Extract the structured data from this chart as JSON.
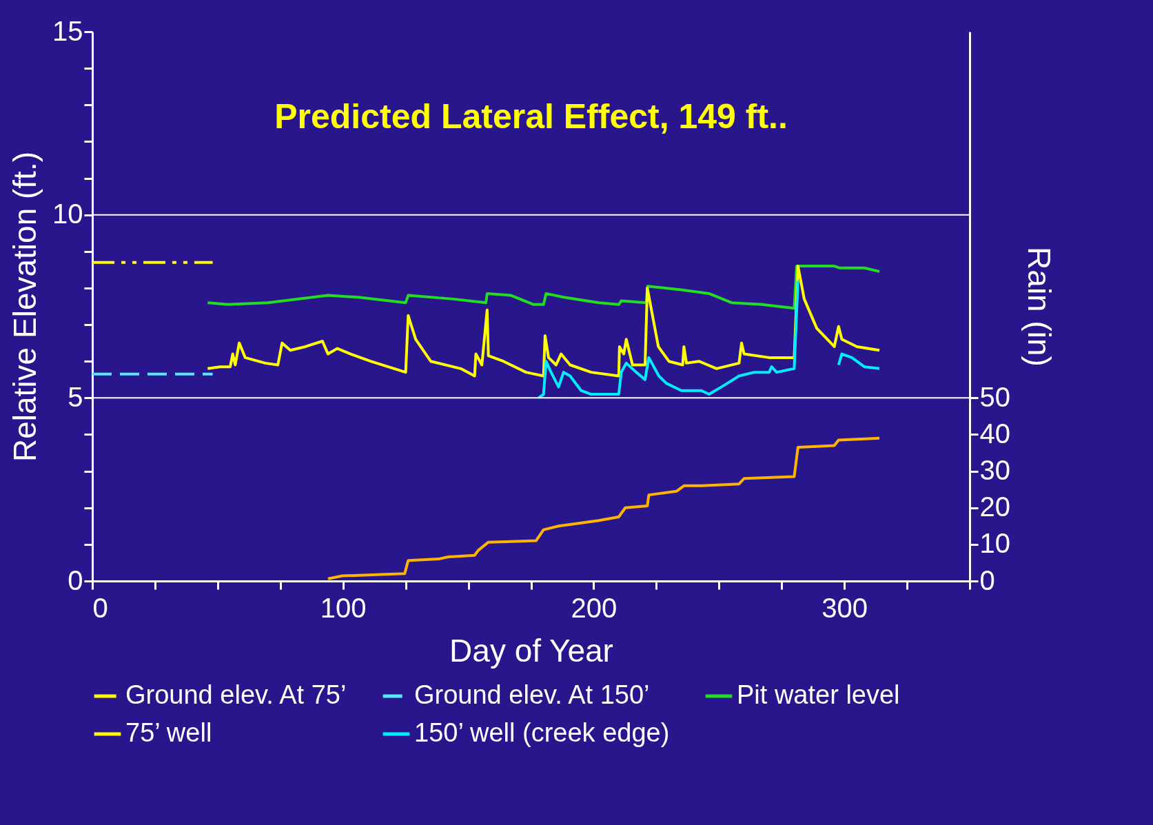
{
  "chart_data": {
    "type": "line",
    "title": "Predicted Lateral Effect, 149 ft..",
    "xlabel": "Day of Year",
    "ylabel": "Relative Elevation (ft.)",
    "y2label": "Rain (in)",
    "xlim": [
      0,
      350
    ],
    "xticks": [
      0,
      {
        "value": 25,
        "label": null
      },
      {
        "value": 50,
        "label": null
      },
      {
        "value": 75,
        "label": null
      },
      100,
      {
        "value": 125,
        "label": null
      },
      {
        "value": 150,
        "label": null
      },
      {
        "value": 175,
        "label": null
      },
      200,
      {
        "value": 225,
        "label": null
      },
      {
        "value": 250,
        "label": null
      },
      {
        "value": 275,
        "label": null
      },
      300,
      {
        "value": 325,
        "label": null
      },
      {
        "value": 350,
        "label": null
      }
    ],
    "ylim": [
      0,
      15
    ],
    "yticks": [
      0,
      {
        "value": 1,
        "label": null
      },
      {
        "value": 2,
        "label": null
      },
      {
        "value": 3,
        "label": null
      },
      {
        "value": 4,
        "label": null
      },
      5,
      {
        "value": 6,
        "label": null
      },
      {
        "value": 7,
        "label": null
      },
      {
        "value": 8,
        "label": null
      },
      {
        "value": 9,
        "label": null
      },
      10,
      {
        "value": 11,
        "label": null
      },
      {
        "value": 12,
        "label": null
      },
      {
        "value": 13,
        "label": null
      },
      {
        "value": 14,
        "label": null
      },
      15
    ],
    "y2lim": [
      0,
      150
    ],
    "y2ticks": [
      0,
      10,
      20,
      30,
      40,
      50
    ],
    "grid": "y",
    "legend": "bottom",
    "series": [
      {
        "name": "Ground elev. At 75’",
        "color": "#ffff00",
        "line_style": "dotted",
        "x": [
          0,
          48
        ],
        "values": [
          8.7,
          8.7
        ]
      },
      {
        "name": "Ground elev. At 150’",
        "color": "#55e8ff",
        "line_style": "dashed",
        "x": [
          0,
          48
        ],
        "values": [
          5.65,
          5.65
        ]
      },
      {
        "name": "Pit water level",
        "color": "#22dd22",
        "line_style": "solid",
        "x": [
          46,
          54,
          70,
          94,
          106,
          125,
          126,
          144,
          157,
          157.5,
          167,
          176,
          180,
          181,
          188,
          202,
          210,
          211,
          221,
          221.5,
          235,
          246,
          255,
          267,
          280,
          281,
          296,
          298,
          308,
          314
        ],
        "values": [
          7.6,
          7.55,
          7.6,
          7.8,
          7.75,
          7.6,
          7.8,
          7.7,
          7.6,
          7.85,
          7.8,
          7.55,
          7.55,
          7.85,
          7.75,
          7.6,
          7.55,
          7.65,
          7.6,
          8.05,
          7.95,
          7.85,
          7.6,
          7.55,
          7.45,
          8.6,
          8.6,
          8.55,
          8.55,
          8.45
        ]
      },
      {
        "name": "75’ well",
        "color": "#ffff00",
        "line_style": "solid",
        "x": [
          46,
          51,
          55,
          56,
          57,
          58.6,
          61,
          69,
          74,
          75.7,
          79,
          85,
          91.8,
          94,
          97.7,
          103,
          111,
          125,
          126,
          129,
          135,
          147,
          152.5,
          153,
          155.4,
          157.5,
          158,
          164,
          173,
          180,
          180.6,
          182,
          185,
          187,
          190.6,
          199,
          210,
          210.3,
          212,
          213,
          215.5,
          220.5,
          221.4,
          225.8,
          230,
          235.5,
          236,
          237,
          242,
          249,
          258,
          259,
          260,
          270,
          280,
          281.5,
          284,
          289,
          296,
          297.7,
          299,
          305,
          314
        ],
        "values": [
          5.8,
          5.85,
          5.85,
          6.2,
          5.9,
          6.5,
          6.1,
          5.95,
          5.9,
          6.5,
          6.3,
          6.4,
          6.55,
          6.2,
          6.35,
          6.2,
          6,
          5.7,
          7.25,
          6.6,
          6,
          5.8,
          5.6,
          6.2,
          5.9,
          7.4,
          6.15,
          6,
          5.7,
          5.6,
          6.7,
          6.1,
          5.9,
          6.2,
          5.9,
          5.7,
          5.6,
          6.4,
          6.2,
          6.6,
          5.9,
          5.9,
          8,
          6.4,
          6,
          5.9,
          6.4,
          5.95,
          6,
          5.8,
          5.95,
          6.5,
          6.2,
          6.1,
          6.1,
          8.6,
          7.7,
          6.9,
          6.4,
          6.95,
          6.6,
          6.4,
          6.3
        ]
      },
      {
        "name": "150’ well (creek edge)",
        "color": "#00eeff",
        "line_style": "solid",
        "x": [
          178,
          180,
          181,
          183,
          186,
          188,
          190.6,
          195,
          199,
          210,
          211,
          213,
          217,
          220.5,
          222,
          226,
          229,
          235,
          243,
          246,
          251,
          258,
          264,
          270,
          271,
          273,
          280,
          281.5,
          290,
          297.7,
          299,
          303,
          308,
          314
        ],
        "values": [
          5,
          5.1,
          6,
          5.7,
          5.3,
          5.7,
          5.6,
          5.2,
          5.1,
          5.1,
          5.7,
          5.95,
          5.7,
          5.5,
          6.1,
          5.6,
          5.4,
          5.2,
          5.2,
          5.1,
          5.3,
          5.6,
          5.7,
          5.7,
          5.85,
          5.7,
          5.8,
          8.2,
          null,
          5.9,
          6.2,
          6.1,
          5.85,
          5.8
        ]
      },
      {
        "color": "#ffb400",
        "axis": "y2",
        "line_style": "solid",
        "x": [
          94,
          99.7,
          124.6,
          126,
          138,
          142,
          152.5,
          154,
          158,
          177,
          180,
          186,
          202,
          210,
          212.6,
          221.4,
          222,
          233,
          236,
          243,
          258,
          260,
          280,
          281.5,
          296,
          297.7,
          314
        ],
        "values": [
          0.6,
          1.4,
          2,
          5.6,
          6,
          6.6,
          7,
          8.4,
          10.6,
          11,
          14,
          15,
          16.5,
          17.5,
          20,
          20.5,
          23.5,
          24.5,
          26,
          26,
          26.5,
          28,
          28.5,
          36.5,
          37,
          38.5,
          39
        ]
      }
    ]
  }
}
